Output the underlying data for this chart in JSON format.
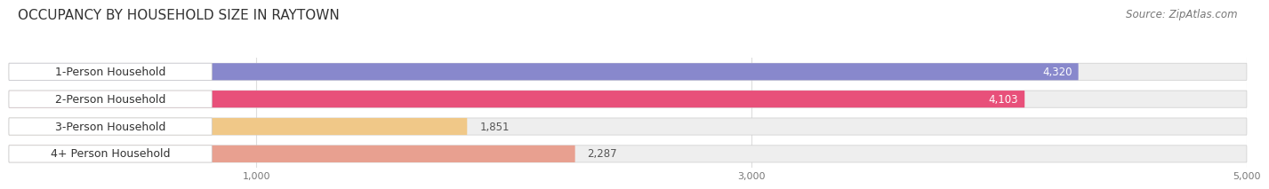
{
  "title": "OCCUPANCY BY HOUSEHOLD SIZE IN RAYTOWN",
  "source": "Source: ZipAtlas.com",
  "categories": [
    "1-Person Household",
    "2-Person Household",
    "3-Person Household",
    "4+ Person Household"
  ],
  "values": [
    4320,
    4103,
    1851,
    2287
  ],
  "bar_colors": [
    "#8888cc",
    "#e8507a",
    "#f0c888",
    "#e8a090"
  ],
  "bar_label_colors": [
    "white",
    "white",
    "#444444",
    "#444444"
  ],
  "xlim": [
    0,
    5000
  ],
  "xticks": [
    1000,
    3000,
    5000
  ],
  "background_color": "#ffffff",
  "bar_bg_color": "#eeeeee",
  "title_fontsize": 11,
  "source_fontsize": 8.5,
  "label_fontsize": 9,
  "value_fontsize": 8.5
}
